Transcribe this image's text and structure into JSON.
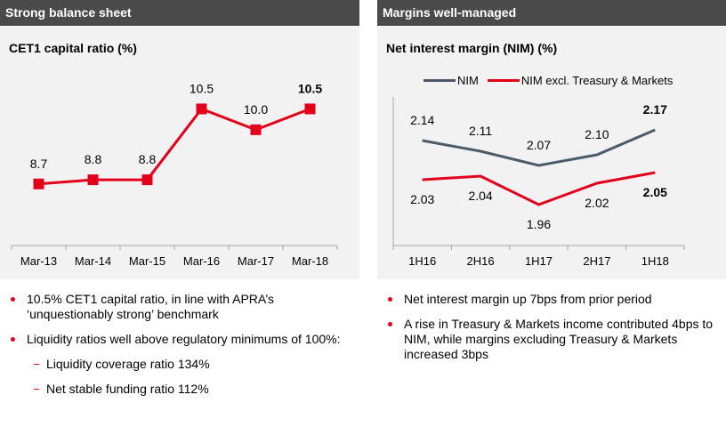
{
  "left_panel": {
    "header": "Strong balance sheet",
    "bullets": [
      {
        "text": "10.5% CET1 capital ratio, in line with APRA’s ‘unquestionably strong’ benchmark"
      },
      {
        "text": "Liquidity ratios well above regulatory minimums of 100%:",
        "subs": [
          "Liquidity coverage ratio 134%",
          "Net stable funding ratio 112%"
        ]
      }
    ]
  },
  "right_panel": {
    "header": "Margins well-managed",
    "bullets": [
      {
        "text": "Net interest margin up 7bps from prior period"
      },
      {
        "text": "A rise in Treasury & Markets income contributed 4bps to NIM, while margins excluding Treasury & Markets increased 3bps"
      }
    ]
  },
  "colors": {
    "red": "#e3001b",
    "nim": "#4a5b6b",
    "header": "#4a4a4a",
    "bg": "#f2f2f2"
  },
  "chart_data": [
    {
      "type": "line",
      "title": "CET1 capital ratio (%)",
      "categories": [
        "Mar-13",
        "Mar-14",
        "Mar-15",
        "Mar-16",
        "Mar-17",
        "Mar-18"
      ],
      "series": [
        {
          "values": [
            8.7,
            8.8,
            8.8,
            10.5,
            10.0,
            10.5
          ],
          "labels": [
            "8.7",
            "8.8",
            "8.8",
            "10.5",
            "10.0",
            "10.5"
          ],
          "bold_last": true,
          "markers": "square"
        }
      ],
      "ylim": [
        7.5,
        11.0
      ],
      "grid": false
    },
    {
      "type": "line",
      "title": "Net interest margin (NIM) (%)",
      "categories": [
        "1H16",
        "2H16",
        "1H17",
        "2H17",
        "1H18"
      ],
      "series": [
        {
          "name": "NIM",
          "values": [
            2.14,
            2.11,
            2.07,
            2.1,
            2.17
          ],
          "labels": [
            "2.14",
            "2.11",
            "2.07",
            "2.10",
            "2.17"
          ]
        },
        {
          "name": "NIM excl. Treasury & Markets",
          "values": [
            2.03,
            2.04,
            1.96,
            2.02,
            2.05
          ],
          "labels": [
            "2.03",
            "2.04",
            "1.96",
            "2.02",
            "2.05"
          ]
        }
      ],
      "ylim": [
        1.8,
        2.3
      ],
      "legend": "top",
      "grid": false
    }
  ]
}
